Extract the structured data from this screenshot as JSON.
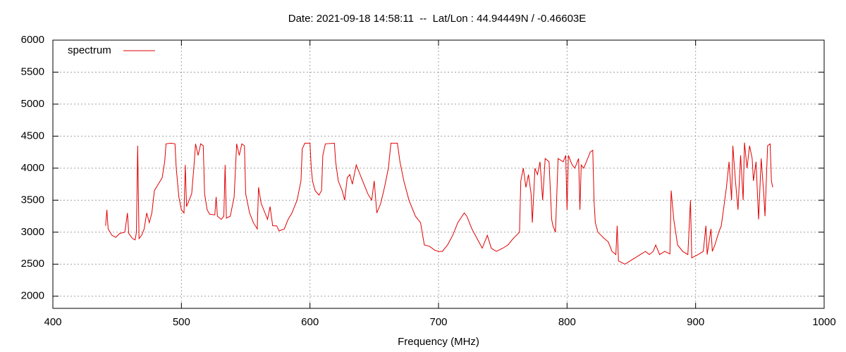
{
  "chart_data": {
    "type": "line",
    "title": "Date: 2021-09-18 14:58:11  --  Lat/Lon : 44.94449N / -0.46603E",
    "xlabel": "Frequency (MHz)",
    "xlim": [
      400,
      1000
    ],
    "xticks": [
      400,
      500,
      600,
      700,
      800,
      900,
      1000
    ],
    "ylim": [
      1810,
      6000
    ],
    "yticks": [
      2000,
      2500,
      3000,
      3500,
      4000,
      4500,
      5000,
      5500,
      6000
    ],
    "grid": true,
    "legend": "top-left",
    "x": [
      441,
      442,
      443,
      446,
      449,
      452,
      456,
      458,
      459,
      462,
      464,
      465,
      466,
      467,
      469,
      471,
      473,
      475,
      477,
      479,
      482,
      485,
      487,
      488,
      492,
      495,
      496,
      498,
      500,
      502,
      503,
      504,
      506,
      508,
      510,
      511,
      513,
      515,
      517,
      518,
      520,
      522,
      526,
      527,
      528,
      531,
      533,
      534,
      535,
      538,
      541,
      543,
      545,
      547,
      549,
      550,
      553,
      556,
      559,
      560,
      562,
      565,
      567,
      569,
      571,
      574,
      576,
      580,
      583,
      586,
      590,
      593,
      594,
      596,
      600,
      601,
      602,
      604,
      607,
      609,
      610,
      612,
      619,
      620,
      622,
      625,
      627,
      629,
      631,
      633,
      636,
      639,
      642,
      645,
      648,
      650,
      652,
      655,
      658,
      661,
      663,
      668,
      670,
      673,
      677,
      682,
      686,
      689,
      693,
      697,
      700,
      703,
      707,
      711,
      715,
      720,
      722,
      726,
      730,
      734,
      738,
      741,
      745,
      750,
      754,
      758,
      763,
      764,
      766,
      768,
      770,
      772,
      773,
      775,
      777,
      779,
      781,
      783,
      786,
      788,
      789,
      791,
      793,
      797,
      799,
      800,
      801,
      804,
      806,
      809,
      810,
      811,
      813,
      815,
      818,
      820,
      821,
      822,
      824,
      829,
      832,
      835,
      838,
      839,
      840,
      845,
      849,
      853,
      857,
      861,
      864,
      867,
      869,
      872,
      876,
      880,
      881,
      883,
      886,
      890,
      894,
      896,
      897,
      902,
      906,
      908,
      909,
      912,
      913,
      915,
      918,
      920,
      922,
      924,
      926,
      928,
      929,
      931,
      933,
      935,
      937,
      938,
      940,
      942,
      944,
      945,
      947,
      949,
      951,
      953,
      954,
      956,
      958,
      959,
      960
    ],
    "series": [
      {
        "name": "spectrum",
        "color": "#e00000",
        "values": [
          3100,
          3350,
          3050,
          2950,
          2920,
          2980,
          3000,
          3300,
          2980,
          2900,
          2880,
          3000,
          4350,
          2900,
          2950,
          3050,
          3300,
          3150,
          3300,
          3650,
          3750,
          3850,
          4100,
          4380,
          4390,
          4380,
          4000,
          3550,
          3350,
          3300,
          4050,
          3400,
          3500,
          3600,
          4100,
          4380,
          4200,
          4380,
          4350,
          3600,
          3350,
          3280,
          3270,
          3550,
          3250,
          3200,
          3250,
          4050,
          3220,
          3250,
          3550,
          4380,
          4200,
          4380,
          4350,
          3600,
          3300,
          3150,
          3050,
          3700,
          3450,
          3300,
          3200,
          3400,
          3100,
          3100,
          3020,
          3050,
          3200,
          3300,
          3500,
          3800,
          4300,
          4390,
          4390,
          4000,
          3800,
          3650,
          3580,
          3650,
          4200,
          4380,
          4390,
          4100,
          3800,
          3650,
          3500,
          3850,
          3900,
          3750,
          4050,
          3900,
          3750,
          3600,
          3500,
          3800,
          3300,
          3450,
          3700,
          4000,
          4390,
          4390,
          4100,
          3800,
          3500,
          3250,
          3150,
          2800,
          2780,
          2720,
          2700,
          2700,
          2800,
          2950,
          3150,
          3300,
          3250,
          3050,
          2900,
          2750,
          2950,
          2750,
          2700,
          2750,
          2800,
          2900,
          3000,
          3800,
          4000,
          3700,
          3900,
          3600,
          3150,
          4000,
          3900,
          4100,
          3500,
          4150,
          4100,
          3200,
          3100,
          3000,
          4150,
          4100,
          4200,
          3350,
          4200,
          4050,
          4000,
          4150,
          3350,
          4050,
          4000,
          4100,
          4250,
          4280,
          3500,
          3150,
          3000,
          2900,
          2850,
          2700,
          2650,
          3100,
          2550,
          2500,
          2550,
          2600,
          2650,
          2700,
          2650,
          2700,
          2800,
          2650,
          2700,
          2660,
          3650,
          3200,
          2800,
          2700,
          2650,
          3500,
          2600,
          2650,
          2700,
          3100,
          2650,
          3050,
          2700,
          2800,
          3000,
          3100,
          3400,
          3700,
          4100,
          3500,
          4350,
          3800,
          3350,
          4200,
          3500,
          4400,
          4000,
          4350,
          4150,
          3800,
          4100,
          3200,
          4150,
          3600,
          3250,
          4350,
          4380,
          3800,
          3700
        ]
      }
    ]
  }
}
